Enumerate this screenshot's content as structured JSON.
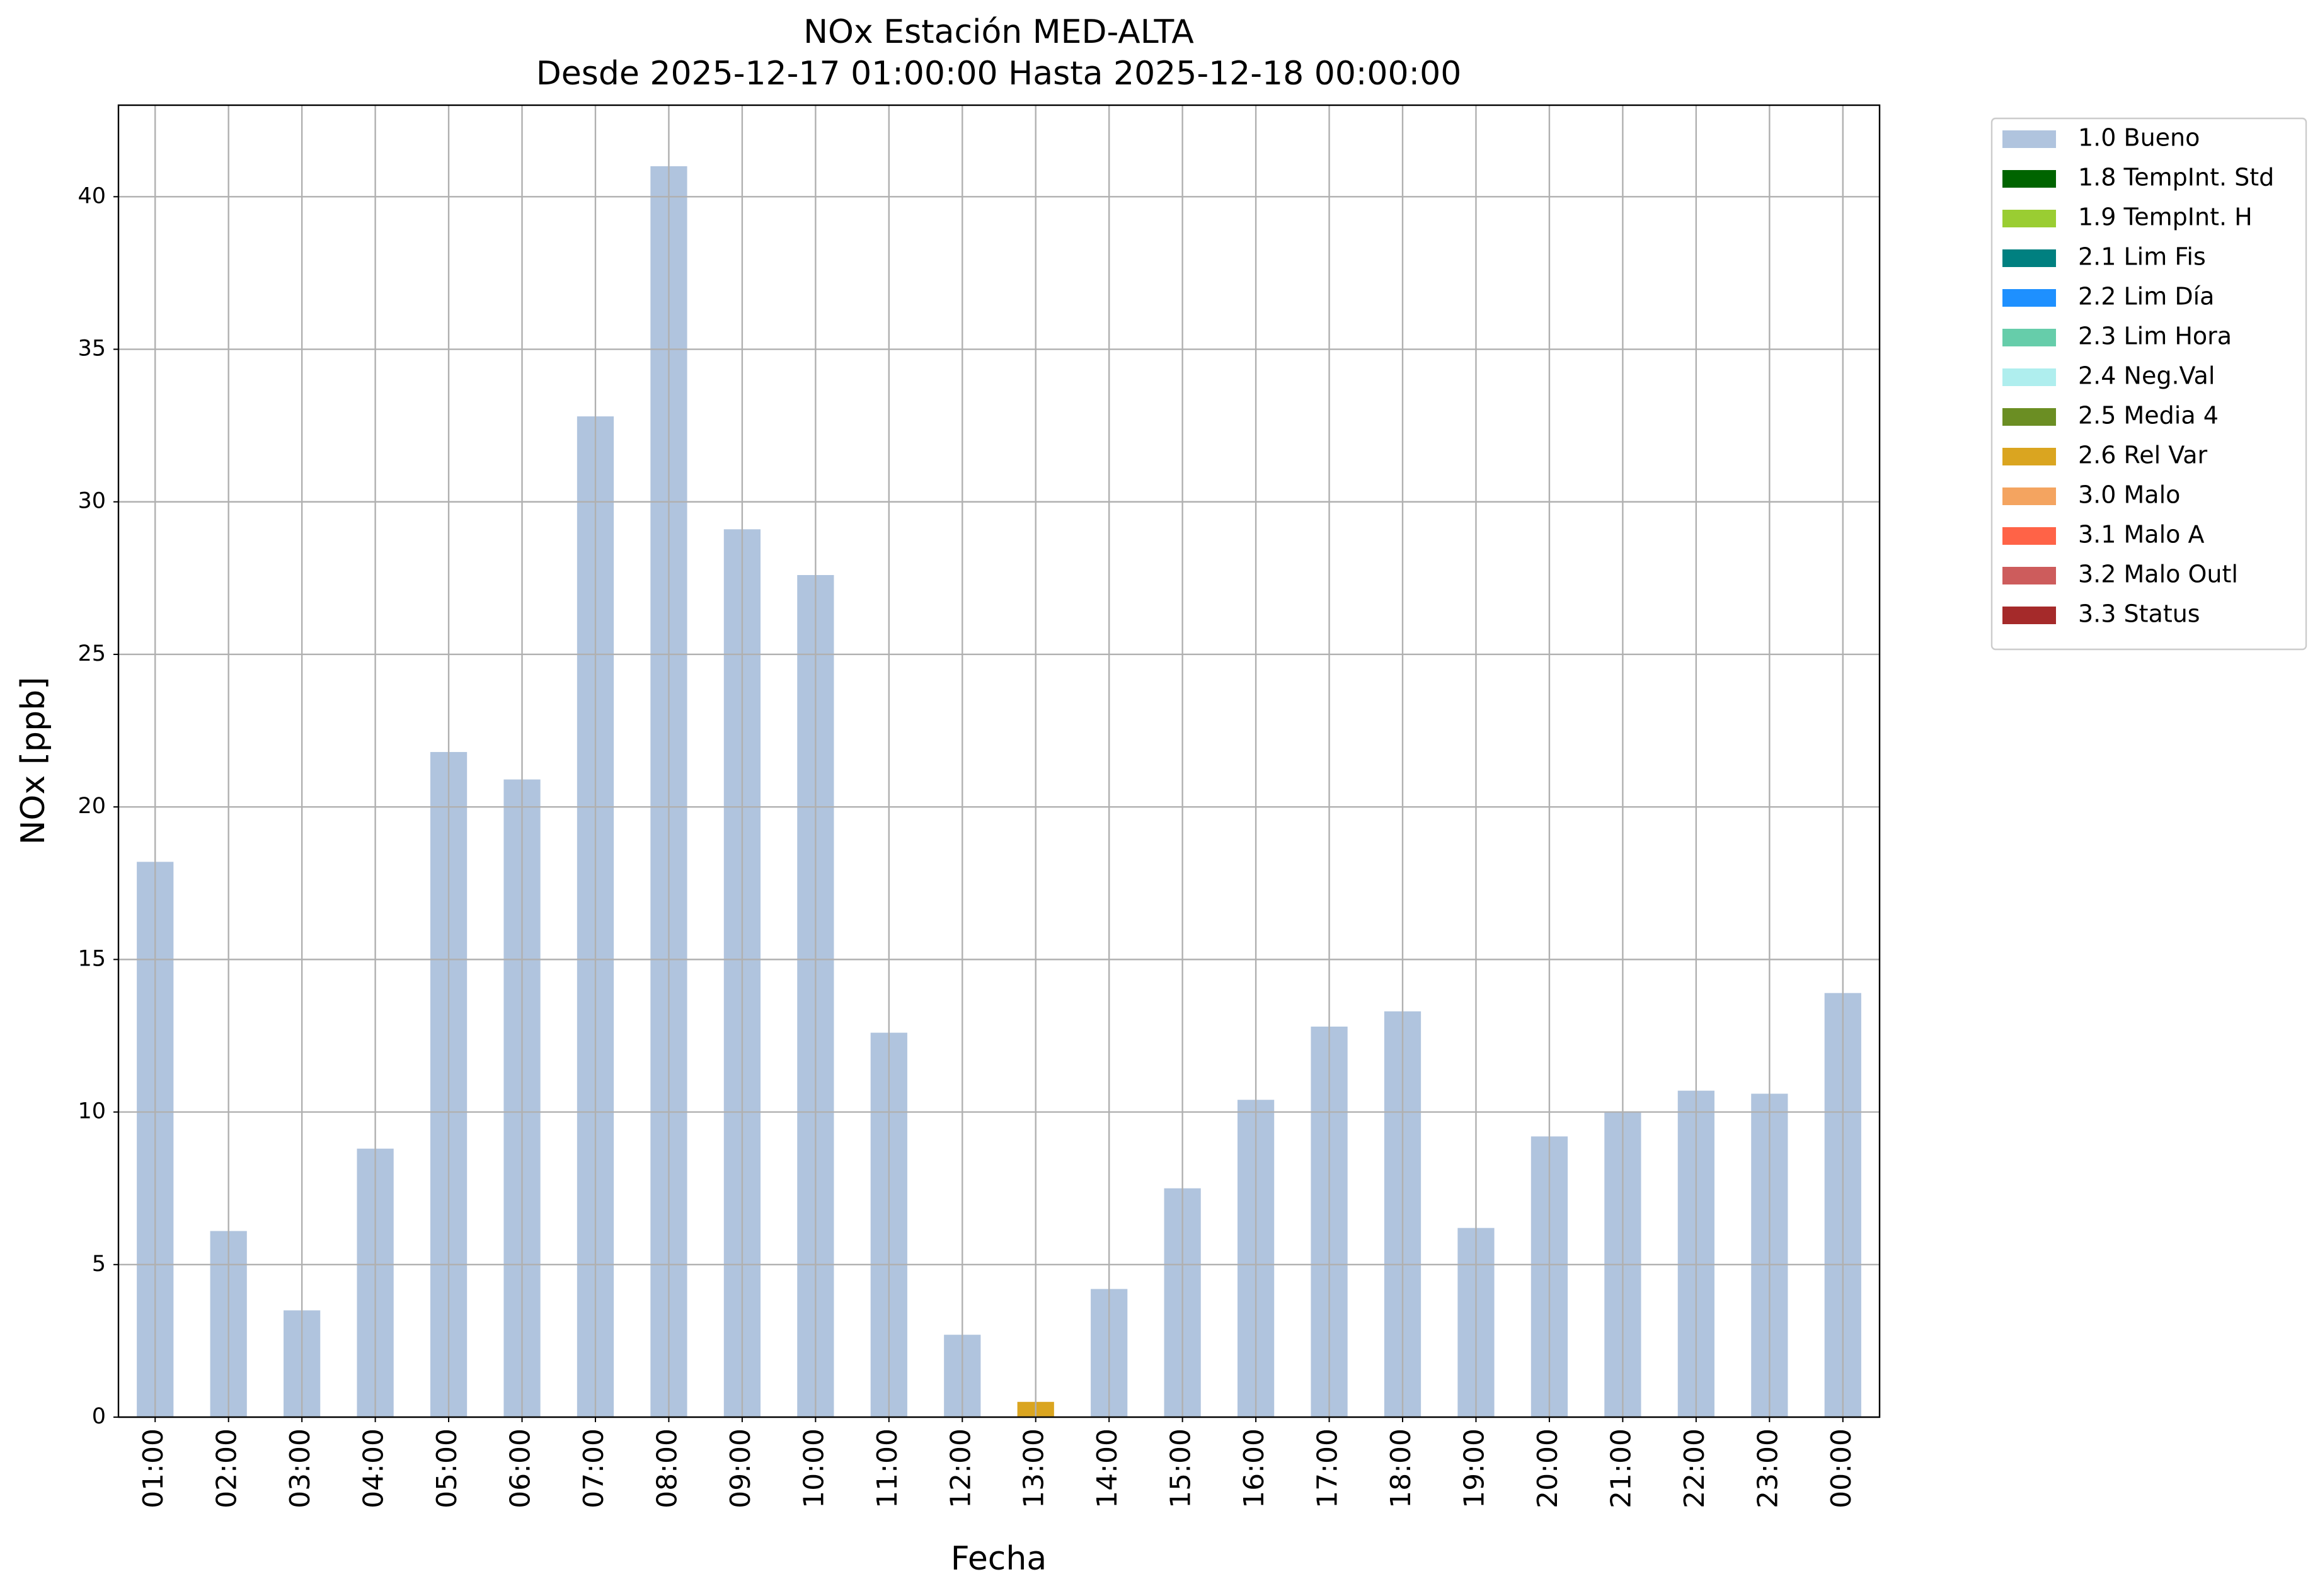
{
  "chart_data": {
    "type": "stacked-bar",
    "title": "NOx Estación MED-ALTA",
    "subtitle": "Desde 2025-12-17 01:00:00 Hasta 2025-12-18 00:00:00",
    "x_label": "Fecha",
    "y_label": "NOx [ppb]",
    "categories": [
      "01:00",
      "02:00",
      "03:00",
      "04:00",
      "05:00",
      "06:00",
      "07:00",
      "08:00",
      "09:00",
      "10:00",
      "11:00",
      "12:00",
      "13:00",
      "14:00",
      "15:00",
      "16:00",
      "17:00",
      "18:00",
      "19:00",
      "20:00",
      "21:00",
      "22:00",
      "23:00",
      "00:00"
    ],
    "series": [
      {
        "name": "1.0 Bueno",
        "color": "#b0c4de",
        "values": [
          18.2,
          6.1,
          3.5,
          8.8,
          21.8,
          20.9,
          32.8,
          41.0,
          29.1,
          27.6,
          12.6,
          2.7,
          null,
          4.2,
          7.5,
          10.4,
          12.8,
          13.3,
          6.2,
          9.2,
          10.0,
          10.7,
          10.6,
          13.9
        ]
      },
      {
        "name": "1.8 TempInt. Std",
        "color": "#006400",
        "values": [
          null,
          null,
          null,
          null,
          null,
          null,
          null,
          null,
          null,
          null,
          null,
          null,
          null,
          null,
          null,
          null,
          null,
          null,
          null,
          null,
          null,
          null,
          null,
          null
        ]
      },
      {
        "name": "1.9 TempInt. H",
        "color": "#9acd32",
        "values": [
          null,
          null,
          null,
          null,
          null,
          null,
          null,
          null,
          null,
          null,
          null,
          null,
          null,
          null,
          null,
          null,
          null,
          null,
          null,
          null,
          null,
          null,
          null,
          null
        ]
      },
      {
        "name": "2.1 Lim Fis",
        "color": "#008080",
        "values": [
          null,
          null,
          null,
          null,
          null,
          null,
          null,
          null,
          null,
          null,
          null,
          null,
          null,
          null,
          null,
          null,
          null,
          null,
          null,
          null,
          null,
          null,
          null,
          null
        ]
      },
      {
        "name": "2.2 Lim Día",
        "color": "#1e90ff",
        "values": [
          null,
          null,
          null,
          null,
          null,
          null,
          null,
          null,
          null,
          null,
          null,
          null,
          null,
          null,
          null,
          null,
          null,
          null,
          null,
          null,
          null,
          null,
          null,
          null
        ]
      },
      {
        "name": "2.3 Lim Hora",
        "color": "#66cdaa",
        "values": [
          null,
          null,
          null,
          null,
          null,
          null,
          null,
          null,
          null,
          null,
          null,
          null,
          null,
          null,
          null,
          null,
          null,
          null,
          null,
          null,
          null,
          null,
          null,
          null
        ]
      },
      {
        "name": "2.4 Neg.Val",
        "color": "#afeeee",
        "values": [
          null,
          null,
          null,
          null,
          null,
          null,
          null,
          null,
          null,
          null,
          null,
          null,
          null,
          null,
          null,
          null,
          null,
          null,
          null,
          null,
          null,
          null,
          null,
          null
        ]
      },
      {
        "name": "2.5 Media 4",
        "color": "#6b8e23",
        "values": [
          null,
          null,
          null,
          null,
          null,
          null,
          null,
          null,
          null,
          null,
          null,
          null,
          null,
          null,
          null,
          null,
          null,
          null,
          null,
          null,
          null,
          null,
          null,
          null
        ]
      },
      {
        "name": "2.6 Rel Var",
        "color": "#daa520",
        "values": [
          null,
          null,
          null,
          null,
          null,
          null,
          null,
          null,
          null,
          null,
          null,
          null,
          0.5,
          null,
          null,
          null,
          null,
          null,
          null,
          null,
          null,
          null,
          null,
          null
        ]
      },
      {
        "name": "3.0 Malo",
        "color": "#f4a460",
        "values": [
          null,
          null,
          null,
          null,
          null,
          null,
          null,
          null,
          null,
          null,
          null,
          null,
          null,
          null,
          null,
          null,
          null,
          null,
          null,
          null,
          null,
          null,
          null,
          null
        ]
      },
      {
        "name": "3.1 Malo A",
        "color": "#ff6347",
        "values": [
          null,
          null,
          null,
          null,
          null,
          null,
          null,
          null,
          null,
          null,
          null,
          null,
          null,
          null,
          null,
          null,
          null,
          null,
          null,
          null,
          null,
          null,
          null,
          null
        ]
      },
      {
        "name": "3.2 Malo Outl",
        "color": "#cd5c5c",
        "values": [
          null,
          null,
          null,
          null,
          null,
          null,
          null,
          null,
          null,
          null,
          null,
          null,
          null,
          null,
          null,
          null,
          null,
          null,
          null,
          null,
          null,
          null,
          null,
          null
        ]
      },
      {
        "name": "3.3 Status",
        "color": "#a52a2a",
        "values": [
          null,
          null,
          null,
          null,
          null,
          null,
          null,
          null,
          null,
          null,
          null,
          null,
          null,
          null,
          null,
          null,
          null,
          null,
          null,
          null,
          null,
          null,
          null,
          null
        ]
      }
    ],
    "ylim": [
      0,
      43
    ],
    "yticks": [
      0,
      5,
      10,
      15,
      20,
      25,
      30,
      35,
      40
    ],
    "grid": true,
    "legend": "outside-right"
  }
}
